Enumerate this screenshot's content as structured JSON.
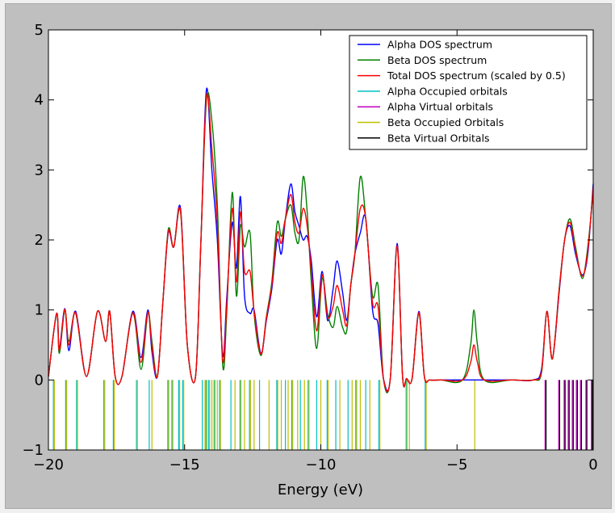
{
  "chart_data": {
    "type": "line",
    "title": "",
    "xlabel": "Energy (eV)",
    "ylabel": "",
    "xlim": [
      -20,
      0
    ],
    "ylim": [
      -1,
      5
    ],
    "x_ticks": [
      {
        "value": -20,
        "label": "−20"
      },
      {
        "value": -15,
        "label": "−15"
      },
      {
        "value": -10,
        "label": "−10"
      },
      {
        "value": -5,
        "label": "−5"
      },
      {
        "value": 0,
        "label": "0"
      }
    ],
    "y_ticks": [
      {
        "value": -1,
        "label": "−1"
      },
      {
        "value": 0,
        "label": "0"
      },
      {
        "value": 1,
        "label": "1"
      },
      {
        "value": 2,
        "label": "2"
      },
      {
        "value": 3,
        "label": "3"
      },
      {
        "value": 4,
        "label": "4"
      },
      {
        "value": 5,
        "label": "5"
      }
    ],
    "grid": false,
    "legend_position": "top-right",
    "legend": [
      {
        "name": "Alpha DOS spectrum",
        "color": "#0000ff"
      },
      {
        "name": "Beta DOS spectrum",
        "color": "#008000"
      },
      {
        "name": "Total DOS spectrum (scaled by 0.5)",
        "color": "#ff0000"
      },
      {
        "name": "Alpha Occupied orbitals",
        "color": "#00bfbf"
      },
      {
        "name": "Alpha Virtual orbitals",
        "color": "#bf00bf"
      },
      {
        "name": "Beta Occupied Orbitals",
        "color": "#bfbf00"
      },
      {
        "name": "Beta Virtual Orbitals",
        "color": "#000000"
      }
    ],
    "series": [
      {
        "name": "Alpha DOS spectrum",
        "color": "#0000ff",
        "x": [
          -20.0,
          -19.7,
          -19.6,
          -19.4,
          -19.25,
          -19.0,
          -18.6,
          -18.2,
          -17.9,
          -17.75,
          -17.55,
          -17.3,
          -16.9,
          -16.6,
          -16.35,
          -16.2,
          -16.0,
          -15.8,
          -15.6,
          -15.4,
          -15.15,
          -14.9,
          -14.6,
          -14.4,
          -14.2,
          -14.0,
          -13.8,
          -13.6,
          -13.45,
          -13.25,
          -13.1,
          -12.95,
          -12.8,
          -12.6,
          -12.45,
          -12.2,
          -12.0,
          -11.8,
          -11.6,
          -11.45,
          -11.3,
          -11.1,
          -10.95,
          -10.8,
          -10.65,
          -10.5,
          -10.35,
          -10.15,
          -9.95,
          -9.75,
          -9.55,
          -9.4,
          -9.2,
          -9.05,
          -8.9,
          -8.75,
          -8.55,
          -8.35,
          -8.1,
          -7.9,
          -7.7,
          -7.45,
          -7.2,
          -7.0,
          -6.85,
          -6.65,
          -6.4,
          -6.2,
          -6.0,
          -5.6,
          -4.8,
          -4.2,
          -3.0,
          -2.2,
          -1.9,
          -1.7,
          -1.5,
          -1.25,
          -1.05,
          -0.85,
          -0.65,
          -0.4,
          -0.2,
          0.0
        ],
        "y": [
          0.05,
          0.95,
          0.45,
          1.02,
          0.42,
          0.98,
          0.05,
          0.98,
          0.55,
          0.98,
          0.05,
          0.05,
          0.98,
          0.32,
          1.0,
          0.4,
          0.05,
          1.1,
          2.1,
          1.9,
          2.45,
          0.5,
          0.05,
          2.0,
          4.15,
          3.0,
          2.0,
          0.35,
          1.2,
          2.25,
          1.6,
          2.62,
          1.2,
          0.95,
          1.0,
          0.38,
          0.85,
          1.3,
          2.0,
          1.8,
          2.3,
          2.8,
          2.4,
          2.2,
          2.0,
          2.05,
          1.7,
          0.9,
          1.55,
          0.85,
          1.3,
          1.7,
          1.25,
          0.85,
          1.35,
          1.8,
          2.1,
          2.3,
          1.0,
          0.8,
          0.02,
          0.02,
          1.95,
          0.05,
          0.02,
          0.02,
          0.98,
          0.05,
          0.0,
          0.0,
          0.0,
          0.0,
          0.0,
          0.0,
          0.15,
          0.98,
          0.3,
          1.25,
          2.0,
          2.2,
          1.8,
          1.5,
          1.8,
          2.8
        ]
      },
      {
        "name": "Beta DOS spectrum",
        "color": "#008000",
        "x": [
          -20.0,
          -19.7,
          -19.6,
          -19.4,
          -19.25,
          -19.0,
          -18.6,
          -18.2,
          -17.9,
          -17.75,
          -17.55,
          -17.3,
          -16.9,
          -16.6,
          -16.35,
          -16.2,
          -16.0,
          -15.8,
          -15.6,
          -15.4,
          -15.15,
          -14.9,
          -14.6,
          -14.4,
          -14.2,
          -14.0,
          -13.8,
          -13.6,
          -13.45,
          -13.25,
          -13.1,
          -12.95,
          -12.8,
          -12.6,
          -12.45,
          -12.2,
          -12.0,
          -11.8,
          -11.6,
          -11.45,
          -11.3,
          -11.1,
          -10.95,
          -10.8,
          -10.65,
          -10.5,
          -10.35,
          -10.15,
          -9.95,
          -9.75,
          -9.55,
          -9.4,
          -9.2,
          -9.05,
          -8.9,
          -8.75,
          -8.55,
          -8.35,
          -8.1,
          -7.9,
          -7.7,
          -7.45,
          -7.2,
          -7.0,
          -6.85,
          -6.65,
          -6.4,
          -6.2,
          -6.0,
          -5.6,
          -4.8,
          -4.5,
          -4.38,
          -4.25,
          -4.0,
          -3.0,
          -2.2,
          -1.9,
          -1.7,
          -1.5,
          -1.25,
          -1.05,
          -0.85,
          -0.65,
          -0.4,
          -0.2,
          0.0
        ],
        "y": [
          0.05,
          0.95,
          0.38,
          1.0,
          0.55,
          0.95,
          0.05,
          0.98,
          0.55,
          0.98,
          0.05,
          0.05,
          0.95,
          0.15,
          0.95,
          0.55,
          0.05,
          1.1,
          2.15,
          1.9,
          2.4,
          0.5,
          0.05,
          2.0,
          4.0,
          3.7,
          2.5,
          0.2,
          1.0,
          2.68,
          1.2,
          2.2,
          1.9,
          2.1,
          0.95,
          0.35,
          0.9,
          1.4,
          2.25,
          2.05,
          2.3,
          2.5,
          2.1,
          2.0,
          2.9,
          2.4,
          1.4,
          0.45,
          1.45,
          0.95,
          0.75,
          1.05,
          0.75,
          0.7,
          1.35,
          1.8,
          2.9,
          2.3,
          1.2,
          1.35,
          0.02,
          0.02,
          1.9,
          0.05,
          0.02,
          0.02,
          0.95,
          0.05,
          0.0,
          0.0,
          0.0,
          0.5,
          1.0,
          0.5,
          0.0,
          0.0,
          0.0,
          0.1,
          0.98,
          0.3,
          1.3,
          2.0,
          2.3,
          1.9,
          1.45,
          1.9,
          2.7
        ]
      },
      {
        "name": "Total DOS spectrum (scaled by 0.5)",
        "color": "#ff0000",
        "x": [
          -20.0,
          -19.7,
          -19.6,
          -19.4,
          -19.25,
          -19.0,
          -18.6,
          -18.2,
          -17.9,
          -17.75,
          -17.55,
          -17.3,
          -16.9,
          -16.6,
          -16.35,
          -16.2,
          -16.0,
          -15.8,
          -15.6,
          -15.4,
          -15.15,
          -14.9,
          -14.6,
          -14.4,
          -14.2,
          -14.0,
          -13.8,
          -13.6,
          -13.45,
          -13.25,
          -13.1,
          -12.95,
          -12.8,
          -12.6,
          -12.45,
          -12.2,
          -12.0,
          -11.8,
          -11.6,
          -11.45,
          -11.3,
          -11.1,
          -10.95,
          -10.8,
          -10.65,
          -10.5,
          -10.35,
          -10.15,
          -9.95,
          -9.75,
          -9.55,
          -9.4,
          -9.2,
          -9.05,
          -8.9,
          -8.75,
          -8.55,
          -8.35,
          -8.1,
          -7.9,
          -7.7,
          -7.45,
          -7.2,
          -7.0,
          -6.85,
          -6.65,
          -6.4,
          -6.2,
          -6.0,
          -5.6,
          -4.8,
          -4.5,
          -4.38,
          -4.25,
          -4.0,
          -3.0,
          -2.2,
          -1.9,
          -1.7,
          -1.5,
          -1.25,
          -1.05,
          -0.85,
          -0.65,
          -0.4,
          -0.2,
          0.0
        ],
        "y": [
          0.05,
          0.95,
          0.42,
          1.01,
          0.5,
          0.96,
          0.05,
          0.98,
          0.55,
          0.98,
          0.05,
          0.05,
          0.96,
          0.25,
          0.97,
          0.48,
          0.05,
          1.1,
          2.12,
          1.9,
          2.42,
          0.5,
          0.05,
          2.0,
          4.05,
          3.3,
          2.25,
          0.28,
          1.1,
          2.45,
          1.4,
          2.4,
          1.55,
          1.55,
          0.98,
          0.37,
          0.88,
          1.35,
          2.1,
          1.95,
          2.3,
          2.65,
          2.25,
          2.1,
          2.45,
          2.2,
          1.55,
          0.7,
          1.5,
          0.9,
          1.05,
          1.35,
          1.0,
          0.78,
          1.35,
          1.8,
          2.45,
          2.3,
          1.1,
          1.05,
          0.02,
          0.02,
          1.92,
          0.05,
          0.02,
          0.02,
          0.96,
          0.05,
          0.0,
          0.0,
          0.0,
          0.25,
          0.5,
          0.25,
          0.0,
          0.0,
          0.0,
          0.12,
          0.98,
          0.3,
          1.28,
          2.0,
          2.25,
          1.85,
          1.48,
          1.85,
          2.75
        ]
      }
    ],
    "orbital_lines": {
      "ymin": -1,
      "ymax": 0,
      "occupied": [
        {
          "x": -19.8,
          "colors": [
            "#00bfbf",
            "#bfbf00"
          ]
        },
        {
          "x": -19.35,
          "colors": [
            "#00bfbf",
            "#bfbf00"
          ]
        },
        {
          "x": -18.95,
          "colors": [
            "#00bfbf",
            "#bfbf00"
          ]
        },
        {
          "x": -17.95,
          "colors": [
            "#00bfbf",
            "#bfbf00"
          ]
        },
        {
          "x": -17.6,
          "colors": [
            "#00bfbf",
            "#bfbf00"
          ]
        },
        {
          "x": -16.75,
          "colors": [
            "#00bfbf",
            "#bfbf00"
          ]
        },
        {
          "x": -16.3,
          "colors": [
            "#00bfbf"
          ]
        },
        {
          "x": -16.2,
          "colors": [
            "#bfbf00"
          ]
        },
        {
          "x": -15.6,
          "colors": [
            "#00bfbf",
            "#bfbf00"
          ]
        },
        {
          "x": -15.45,
          "colors": [
            "#00bfbf",
            "#bfbf00"
          ]
        },
        {
          "x": -15.2,
          "colors": [
            "#00bfbf",
            "#bfbf00"
          ]
        },
        {
          "x": -15.05,
          "colors": [
            "#00bfbf",
            "#bfbf00"
          ]
        },
        {
          "x": -14.35,
          "colors": [
            "#00bfbf"
          ]
        },
        {
          "x": -14.25,
          "colors": [
            "#bfbf00"
          ]
        },
        {
          "x": -14.2,
          "colors": [
            "#00bfbf",
            "#bfbf00"
          ]
        },
        {
          "x": -14.1,
          "colors": [
            "#00bfbf",
            "#bfbf00"
          ]
        },
        {
          "x": -14.0,
          "colors": [
            "#bfbf00"
          ]
        },
        {
          "x": -13.9,
          "colors": [
            "#00bfbf",
            "#bfbf00"
          ]
        },
        {
          "x": -13.8,
          "colors": [
            "#bfbf00"
          ]
        },
        {
          "x": -13.7,
          "colors": [
            "#00bfbf",
            "#bfbf00"
          ]
        },
        {
          "x": -13.3,
          "colors": [
            "#00bfbf"
          ]
        },
        {
          "x": -13.15,
          "colors": [
            "#bfbf00"
          ]
        },
        {
          "x": -12.95,
          "colors": [
            "#00bfbf",
            "#bfbf00"
          ]
        },
        {
          "x": -12.8,
          "colors": [
            "#bfbf00"
          ]
        },
        {
          "x": -12.6,
          "colors": [
            "#00bfbf",
            "#bfbf00"
          ]
        },
        {
          "x": -12.45,
          "colors": [
            "#bfbf00"
          ]
        },
        {
          "x": -12.25,
          "colors": [
            "#00bfbf"
          ]
        },
        {
          "x": -11.9,
          "colors": [
            "#bfbf00"
          ]
        },
        {
          "x": -11.6,
          "colors": [
            "#00bfbf",
            "#bfbf00"
          ]
        },
        {
          "x": -11.45,
          "colors": [
            "#bfbf00"
          ]
        },
        {
          "x": -11.3,
          "colors": [
            "#00bfbf"
          ]
        },
        {
          "x": -11.2,
          "colors": [
            "#bfbf00"
          ]
        },
        {
          "x": -11.05,
          "colors": [
            "#00bfbf",
            "#bfbf00"
          ]
        },
        {
          "x": -10.85,
          "colors": [
            "#bfbf00"
          ]
        },
        {
          "x": -10.75,
          "colors": [
            "#00bfbf"
          ]
        },
        {
          "x": -10.6,
          "colors": [
            "#bfbf00"
          ]
        },
        {
          "x": -10.45,
          "colors": [
            "#00bfbf",
            "#bfbf00"
          ]
        },
        {
          "x": -10.15,
          "colors": [
            "#00bfbf"
          ]
        },
        {
          "x": -10.0,
          "colors": [
            "#bfbf00"
          ]
        },
        {
          "x": -9.75,
          "colors": [
            "#00bfbf",
            "#bfbf00"
          ]
        },
        {
          "x": -9.45,
          "colors": [
            "#00bfbf"
          ]
        },
        {
          "x": -9.3,
          "colors": [
            "#bfbf00"
          ]
        },
        {
          "x": -9.0,
          "colors": [
            "#00bfbf"
          ]
        },
        {
          "x": -8.85,
          "colors": [
            "#bfbf00"
          ]
        },
        {
          "x": -8.7,
          "colors": [
            "#00bfbf",
            "#bfbf00"
          ]
        },
        {
          "x": -8.55,
          "colors": [
            "#bfbf00"
          ]
        },
        {
          "x": -8.35,
          "colors": [
            "#00bfbf"
          ]
        },
        {
          "x": -8.2,
          "colors": [
            "#bfbf00"
          ]
        },
        {
          "x": -7.85,
          "colors": [
            "#00bfbf",
            "#bfbf00"
          ]
        },
        {
          "x": -6.85,
          "colors": [
            "#00bfbf",
            "#bfbf00"
          ]
        },
        {
          "x": -6.75,
          "colors": [
            "#bfbf00"
          ]
        },
        {
          "x": -6.15,
          "colors": [
            "#00bfbf",
            "#bfbf00"
          ]
        },
        {
          "x": -4.35,
          "colors": [
            "#bfbf00"
          ]
        }
      ],
      "virtual": [
        {
          "x": -1.75,
          "colors": [
            "#bf00bf",
            "#000000"
          ]
        },
        {
          "x": -1.25,
          "colors": [
            "#bf00bf",
            "#000000"
          ]
        },
        {
          "x": -1.05,
          "colors": [
            "#bf00bf",
            "#000000"
          ]
        },
        {
          "x": -0.9,
          "colors": [
            "#bf00bf",
            "#000000"
          ]
        },
        {
          "x": -0.75,
          "colors": [
            "#bf00bf",
            "#000000"
          ]
        },
        {
          "x": -0.6,
          "colors": [
            "#bf00bf",
            "#000000"
          ]
        },
        {
          "x": -0.45,
          "colors": [
            "#bf00bf",
            "#000000"
          ]
        },
        {
          "x": -0.25,
          "colors": [
            "#bf00bf",
            "#000000"
          ]
        },
        {
          "x": -0.05,
          "colors": [
            "#bf00bf",
            "#000000"
          ]
        }
      ]
    }
  }
}
